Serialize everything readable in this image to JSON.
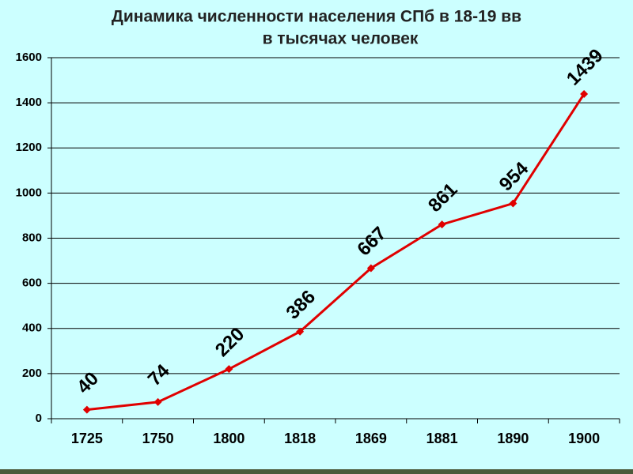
{
  "chart_data": {
    "type": "line",
    "title": "Динамика численности населения СПб в 18-19 вв",
    "subtitle": "в тысячах человек",
    "categories": [
      "1725",
      "1750",
      "1800",
      "1818",
      "1869",
      "1881",
      "1890",
      "1900"
    ],
    "series": [
      {
        "color": "#e00000",
        "values": [
          40,
          74,
          220,
          386,
          667,
          861,
          954,
          1439
        ]
      }
    ],
    "ylim": [
      0,
      1600
    ],
    "yticks": [
      0,
      200,
      400,
      600,
      800,
      1000,
      1200,
      1400,
      1600
    ],
    "grid": true
  }
}
